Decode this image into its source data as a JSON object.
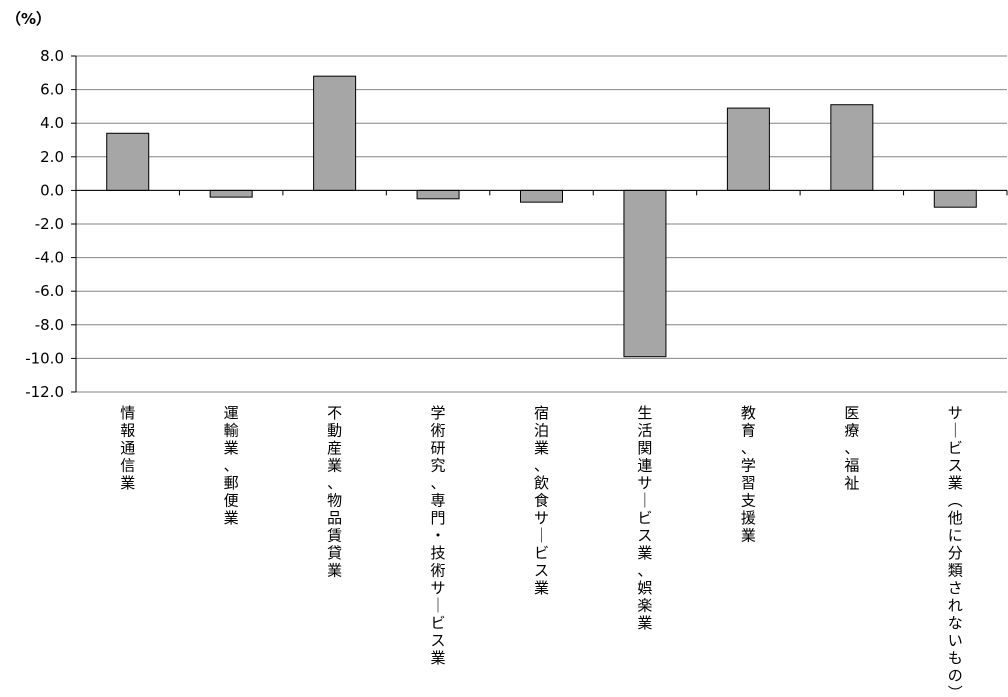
{
  "chart_data": {
    "type": "bar",
    "unit_label": "（%）",
    "categories": [
      "情報通信業",
      "運輸業、郵便業",
      "不動産業、物品賃貸業",
      "学術研究、専門・技術サービス業",
      "宿泊業、飲食サービス業",
      "生活関連サービス業、娯楽業",
      "教育、学習支援業",
      "医療、福祉",
      "サービス業（他に分類されないもの）"
    ],
    "values": [
      3.4,
      -0.4,
      6.8,
      -0.5,
      -0.7,
      -9.9,
      4.9,
      5.1,
      -1.0
    ],
    "ylim": [
      -12.0,
      8.0
    ],
    "yticks": [
      "8.0",
      "6.0",
      "4.0",
      "2.0",
      "0.0",
      "-2.0",
      "-4.0",
      "-6.0",
      "-8.0",
      "-10.0",
      "-12.0"
    ],
    "grid": true,
    "bar_color": "#a6a6a6",
    "xlabel": "",
    "ylabel": ""
  }
}
